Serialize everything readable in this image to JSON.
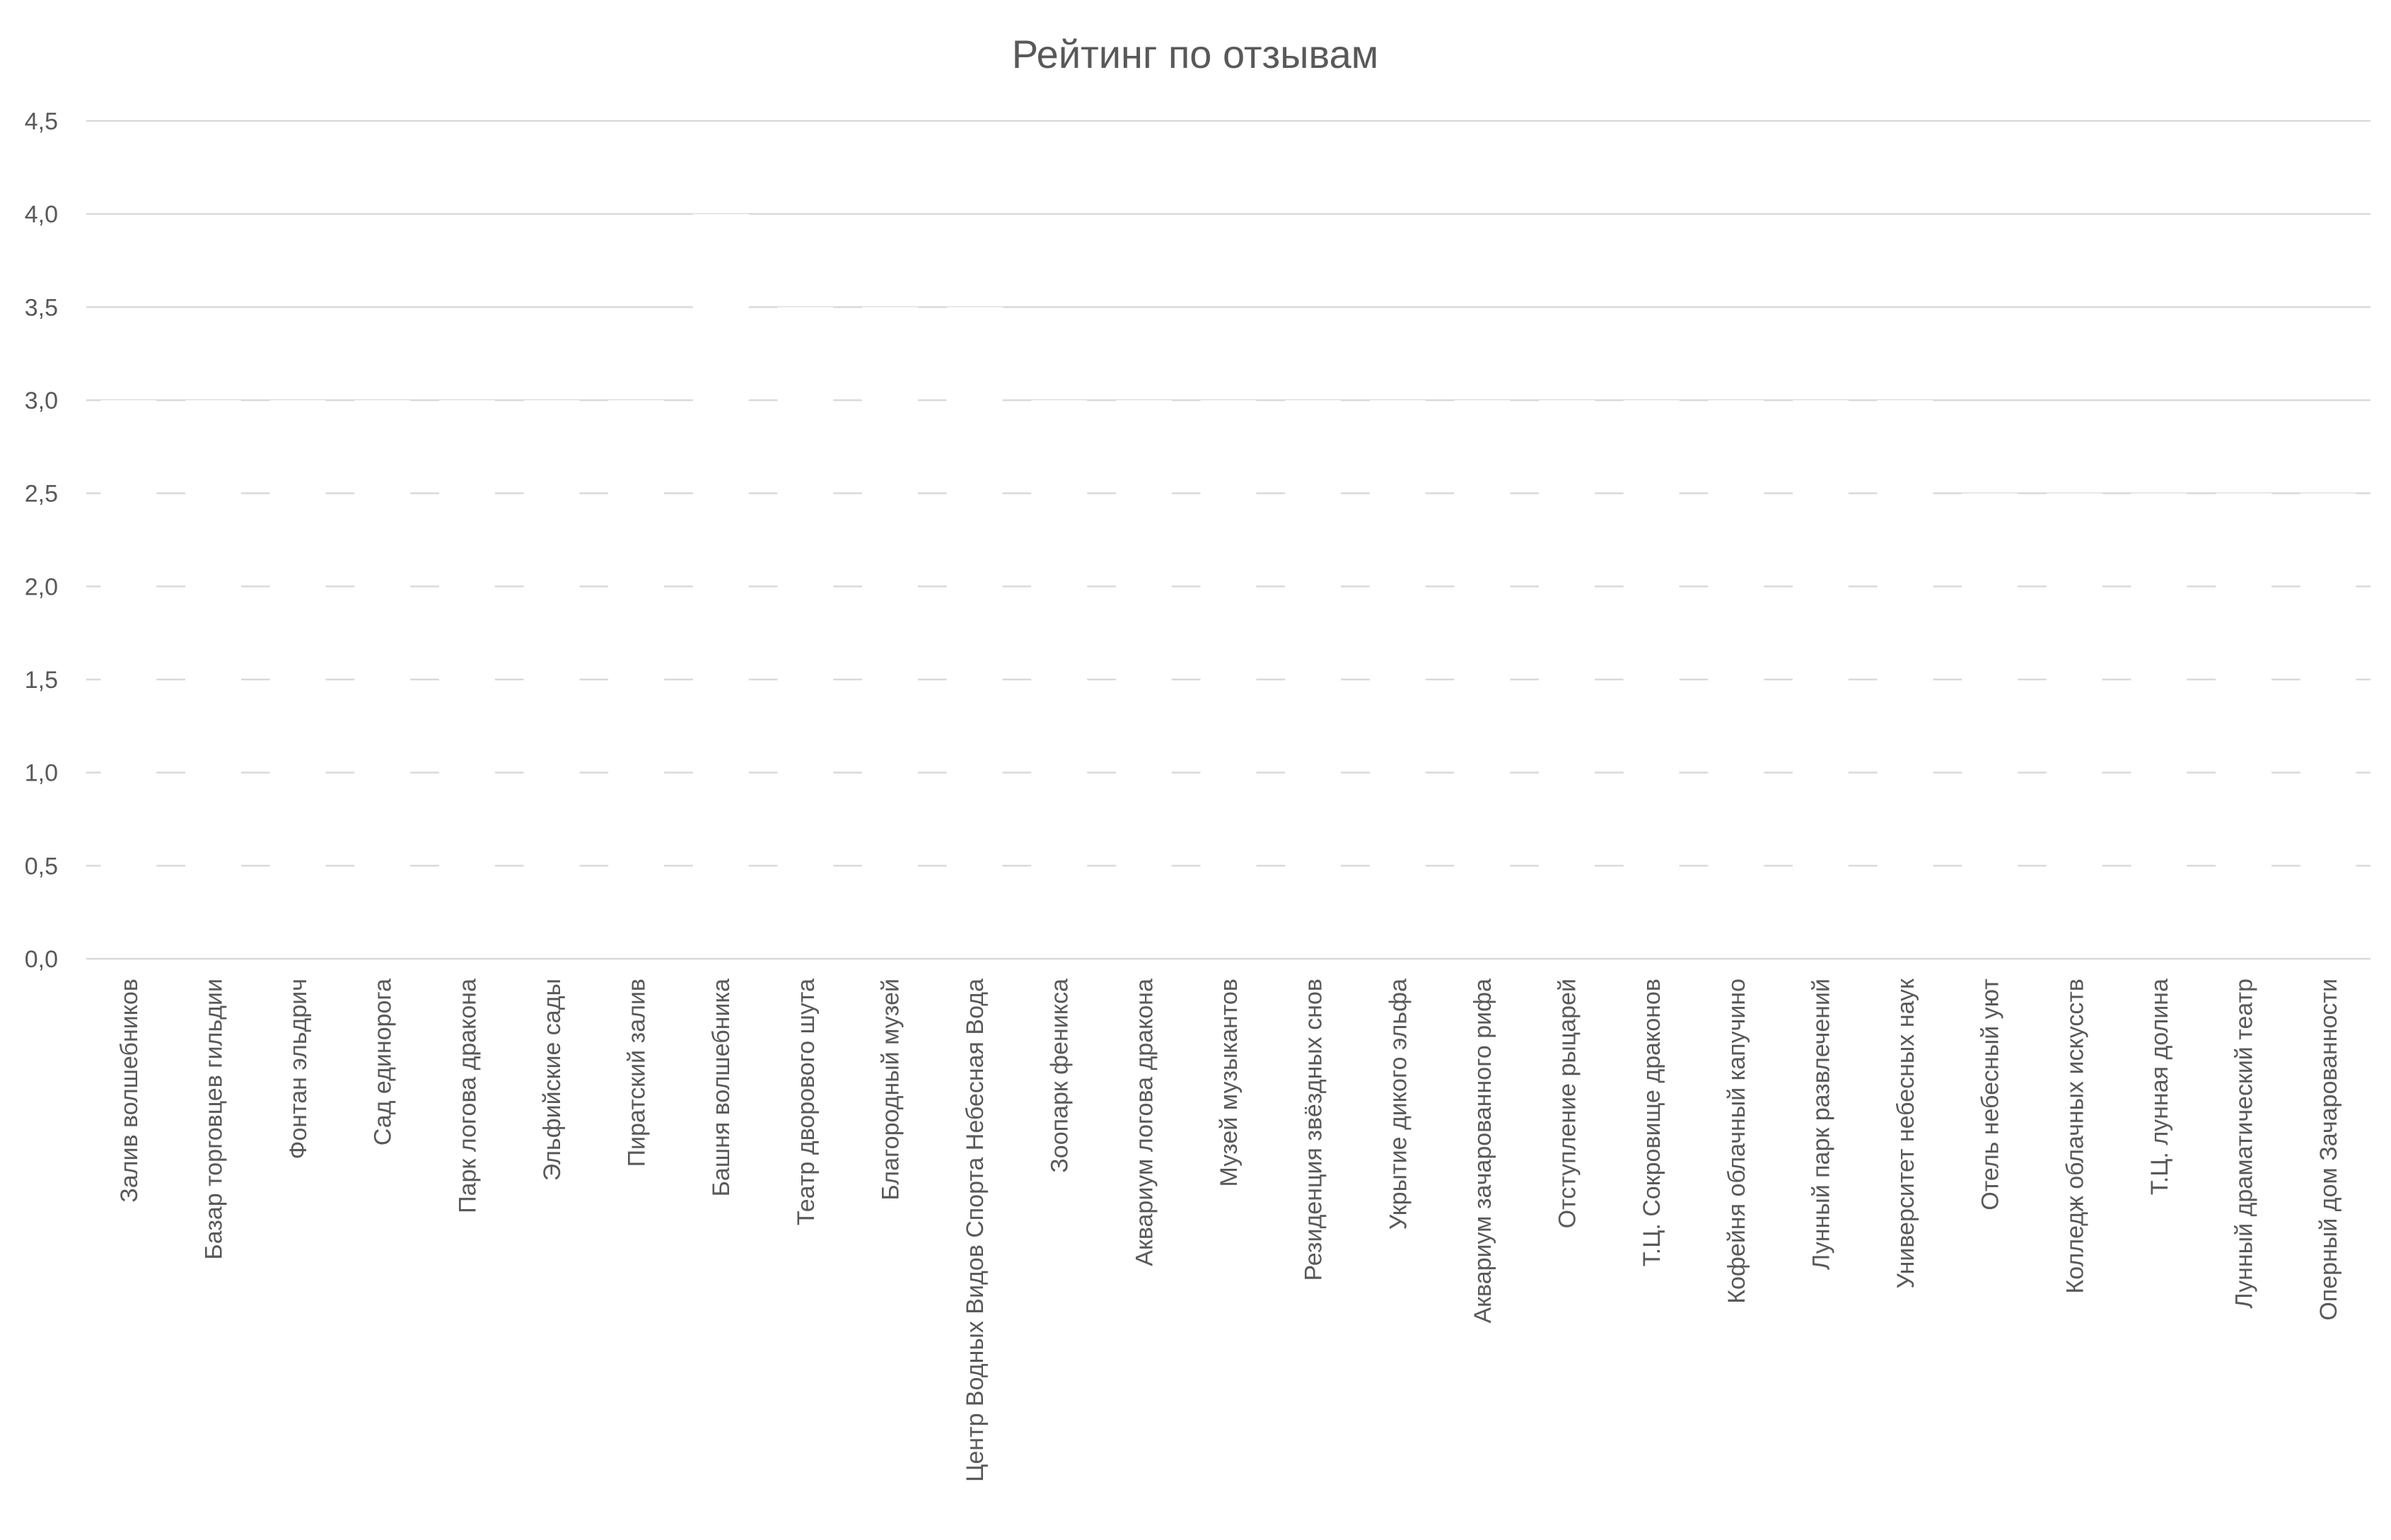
{
  "chart_data": {
    "type": "bar",
    "title": "Рейтинг по отзывам",
    "xlabel": "",
    "ylabel": "",
    "ylim": [
      0,
      4.5
    ],
    "yticks": [
      "0,0",
      "0,5",
      "1,0",
      "1,5",
      "2,0",
      "2,5",
      "3,0",
      "3,5",
      "4,0",
      "4,5"
    ],
    "grid": true,
    "legend": "none",
    "colors": {
      "text": "#595959",
      "grid": "#d9d9d9",
      "background": "#ffffff"
    },
    "categories": [
      "Залив волшебников",
      "Базар торговцев гильдии",
      "Фонтан эльдрич",
      "Сад единорога",
      "Парк логова дракона",
      "Эльфийские сады",
      "Пиратский залив",
      "Башня волшебника",
      "Театр дворового шута",
      "Благородный музей",
      "Центр Водных Видов Спорта Небесная Вода",
      "Зоопарк феникса",
      "Аквариум логова дракона",
      "Музей музыкантов",
      "Резиденция звёздных снов",
      "Укрытие дикого эльфа",
      "Аквариум зачарованного рифа",
      "Отступление рыцарей",
      "Т.Ц. Сокровище драконов",
      "Кофейня облачный капучино",
      "Лунный парк развлечений",
      "Университет небесных наук",
      "Отель небесный уют",
      "Колледж облачных искусств",
      "Т.Ц. лунная долина",
      "Лунный драматический театр",
      "Оперный дом Зачарованности"
    ],
    "values": [
      3.0,
      3.0,
      3.0,
      3.0,
      3.0,
      3.0,
      3.0,
      4.0,
      3.5,
      3.5,
      3.5,
      3.0,
      3.0,
      3.0,
      3.0,
      3.0,
      3.0,
      3.0,
      3.0,
      3.0,
      3.0,
      3.0,
      2.5,
      2.5,
      2.5,
      2.5,
      2.5
    ]
  }
}
